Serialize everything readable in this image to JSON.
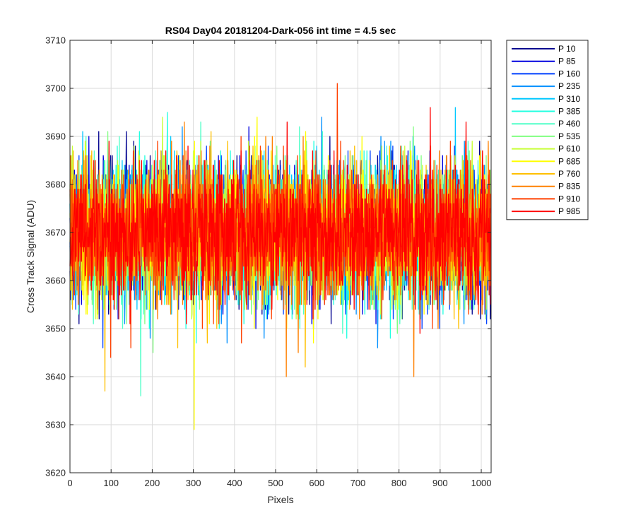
{
  "chart_data": {
    "type": "line",
    "title": "RS04 Day04 20181204-Dark-056 int time = 4.5 sec",
    "xlabel": "Pixels",
    "ylabel": "Cross Track Signal (ADU)",
    "xlim": [
      0,
      1024
    ],
    "ylim": [
      3620,
      3710
    ],
    "xticks": [
      0,
      100,
      200,
      300,
      400,
      500,
      600,
      700,
      800,
      900,
      1000
    ],
    "yticks": [
      3620,
      3630,
      3640,
      3650,
      3660,
      3670,
      3680,
      3690,
      3700,
      3710
    ],
    "grid": true,
    "legend_position": "outside-top-right",
    "n_points": 1024,
    "noise_mean": 3670,
    "noise_sd": 7,
    "series": [
      {
        "name": "P 10",
        "color": "#00008f"
      },
      {
        "name": "P 85",
        "color": "#0000df"
      },
      {
        "name": "P 160",
        "color": "#0040ff"
      },
      {
        "name": "P 235",
        "color": "#0090ff"
      },
      {
        "name": "P 310",
        "color": "#00c8ff"
      },
      {
        "name": "P 385",
        "color": "#20ffe0"
      },
      {
        "name": "P 460",
        "color": "#50ffc8"
      },
      {
        "name": "P 535",
        "color": "#80ff80"
      },
      {
        "name": "P 610",
        "color": "#c8ff38"
      },
      {
        "name": "P 685",
        "color": "#ffff00"
      },
      {
        "name": "P 760",
        "color": "#ffc000"
      },
      {
        "name": "P 835",
        "color": "#ff8000"
      },
      {
        "name": "P 910",
        "color": "#ff4000"
      },
      {
        "name": "P 985",
        "color": "#ff0000"
      }
    ],
    "notable_points": [
      {
        "series": "P 685",
        "x": 302,
        "y": 3629
      },
      {
        "series": "P 460",
        "x": 172,
        "y": 3636
      },
      {
        "series": "P 760",
        "x": 85,
        "y": 3637
      },
      {
        "series": "P 910",
        "x": 650,
        "y": 3701
      },
      {
        "series": "P 835",
        "x": 526,
        "y": 3640
      },
      {
        "series": "P 835",
        "x": 836,
        "y": 3640
      },
      {
        "series": "P 760",
        "x": 572,
        "y": 3642
      }
    ]
  }
}
